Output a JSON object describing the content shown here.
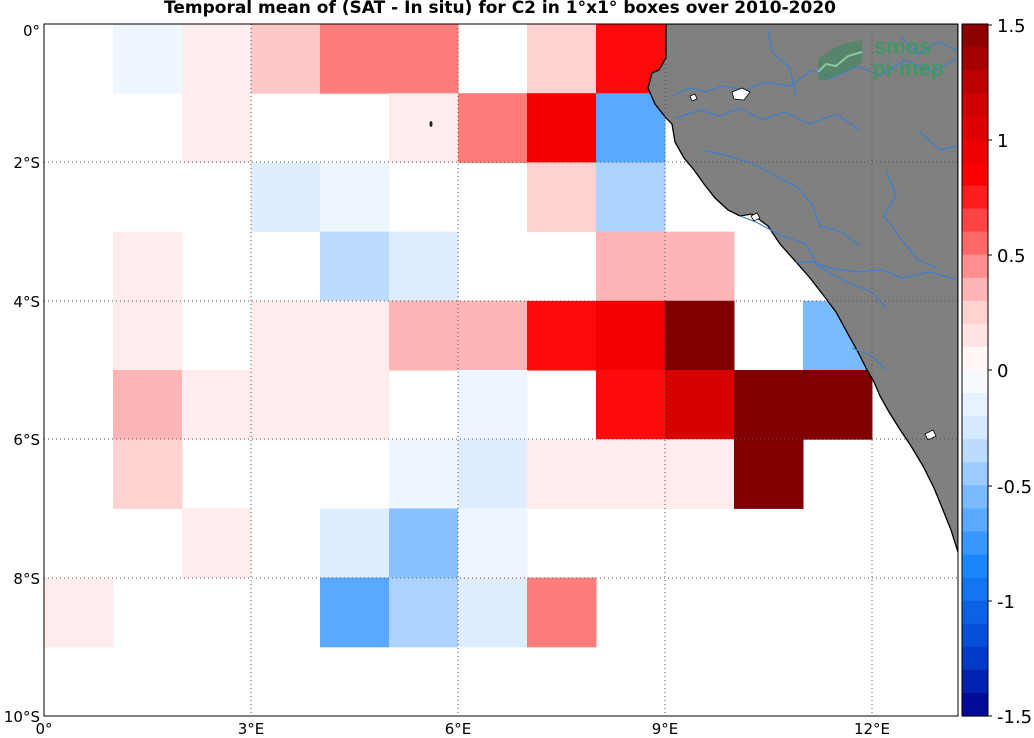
{
  "title": "Temporal mean of (SAT - In situ) for C2 in 1°x1° boxes over 2010-2020",
  "watermark": {
    "line1": "smos",
    "line2": "pi-mep"
  },
  "axes": {
    "lon_ticks": [
      "0°",
      "3°E",
      "6°E",
      "9°E",
      "12°E"
    ],
    "lat_ticks": [
      "0°",
      "2°S",
      "4°S",
      "6°S",
      "8°S",
      "10°S"
    ]
  },
  "colorbar": {
    "ticks": [
      "1.5",
      "1",
      "0.5",
      "0",
      "-0.5",
      "-1",
      "-1.5"
    ],
    "range": [
      -1.5,
      1.5
    ]
  },
  "colors": {
    "land": "#808080",
    "rivers": "#3a7fd0",
    "coast": "#000000",
    "neg_max": "#00008b",
    "pos_max": "#800000"
  },
  "chart_data": {
    "type": "heatmap",
    "title": "Temporal mean of (SAT - In situ) for C2 in 1°x1° boxes over 2010-2020",
    "x_range_lon": [
      0,
      13.3
    ],
    "y_range_lat": [
      0,
      -10
    ],
    "cell_size_deg": 1,
    "value_range": [
      -1.5,
      1.5
    ],
    "cells": [
      {
        "lon": 1,
        "lat": 0,
        "v": -0.1
      },
      {
        "lon": 2,
        "lat": 0,
        "v": 0.1
      },
      {
        "lon": 3,
        "lat": 0,
        "v": 0.3
      },
      {
        "lon": 4,
        "lat": 0,
        "v": 0.5
      },
      {
        "lon": 5,
        "lat": 0,
        "v": 0.5
      },
      {
        "lon": 7,
        "lat": 0,
        "v": 0.25
      },
      {
        "lon": 8,
        "lat": 0,
        "v": 0.8
      },
      {
        "lon": 2,
        "lat": -1,
        "v": 0.1
      },
      {
        "lon": 5,
        "lat": -1,
        "v": 0.1
      },
      {
        "lon": 6,
        "lat": -1,
        "v": 0.5
      },
      {
        "lon": 7,
        "lat": -1,
        "v": 0.9
      },
      {
        "lon": 8,
        "lat": -1,
        "v": -0.65
      },
      {
        "lon": 3,
        "lat": -2,
        "v": -0.2
      },
      {
        "lon": 4,
        "lat": -2,
        "v": -0.1
      },
      {
        "lon": 7,
        "lat": -2,
        "v": 0.25
      },
      {
        "lon": 8,
        "lat": -2,
        "v": -0.4
      },
      {
        "lon": 1,
        "lat": -3,
        "v": 0.1
      },
      {
        "lon": 4,
        "lat": -3,
        "v": -0.35
      },
      {
        "lon": 5,
        "lat": -3,
        "v": -0.2
      },
      {
        "lon": 8,
        "lat": -3,
        "v": 0.35
      },
      {
        "lon": 9,
        "lat": -3,
        "v": 0.35
      },
      {
        "lon": 1,
        "lat": -4,
        "v": 0.1
      },
      {
        "lon": 3,
        "lat": -4,
        "v": 0.1
      },
      {
        "lon": 4,
        "lat": -4,
        "v": 0.1
      },
      {
        "lon": 5,
        "lat": -4,
        "v": 0.35
      },
      {
        "lon": 6,
        "lat": -4,
        "v": 0.35
      },
      {
        "lon": 7,
        "lat": -4,
        "v": 0.8
      },
      {
        "lon": 8,
        "lat": -4,
        "v": 0.9
      },
      {
        "lon": 9,
        "lat": -4,
        "v": 1.5
      },
      {
        "lon": 11,
        "lat": -4,
        "v": -0.55
      },
      {
        "lon": 1,
        "lat": -5,
        "v": 0.35
      },
      {
        "lon": 2,
        "lat": -5,
        "v": 0.1
      },
      {
        "lon": 3,
        "lat": -5,
        "v": 0.1
      },
      {
        "lon": 4,
        "lat": -5,
        "v": 0.1
      },
      {
        "lon": 6,
        "lat": -5,
        "v": -0.1
      },
      {
        "lon": 8,
        "lat": -5,
        "v": 0.8
      },
      {
        "lon": 9,
        "lat": -5,
        "v": 1.1
      },
      {
        "lon": 10,
        "lat": -5,
        "v": 1.5
      },
      {
        "lon": 11,
        "lat": -5,
        "v": 1.5
      },
      {
        "lon": 1,
        "lat": -6,
        "v": 0.25
      },
      {
        "lon": 5,
        "lat": -6,
        "v": -0.1
      },
      {
        "lon": 6,
        "lat": -6,
        "v": -0.2
      },
      {
        "lon": 7,
        "lat": -6,
        "v": 0.1
      },
      {
        "lon": 8,
        "lat": -6,
        "v": 0.1
      },
      {
        "lon": 9,
        "lat": -6,
        "v": 0.1
      },
      {
        "lon": 10,
        "lat": -6,
        "v": 1.5
      },
      {
        "lon": 2,
        "lat": -7,
        "v": 0.1
      },
      {
        "lon": 4,
        "lat": -7,
        "v": -0.2
      },
      {
        "lon": 5,
        "lat": -7,
        "v": -0.5
      },
      {
        "lon": 6,
        "lat": -7,
        "v": -0.1
      },
      {
        "lon": 0,
        "lat": -8,
        "v": 0.1
      },
      {
        "lon": 4,
        "lat": -8,
        "v": -0.65
      },
      {
        "lon": 5,
        "lat": -8,
        "v": -0.4
      },
      {
        "lon": 6,
        "lat": -8,
        "v": -0.2
      },
      {
        "lon": 7,
        "lat": -8,
        "v": 0.5
      }
    ]
  }
}
